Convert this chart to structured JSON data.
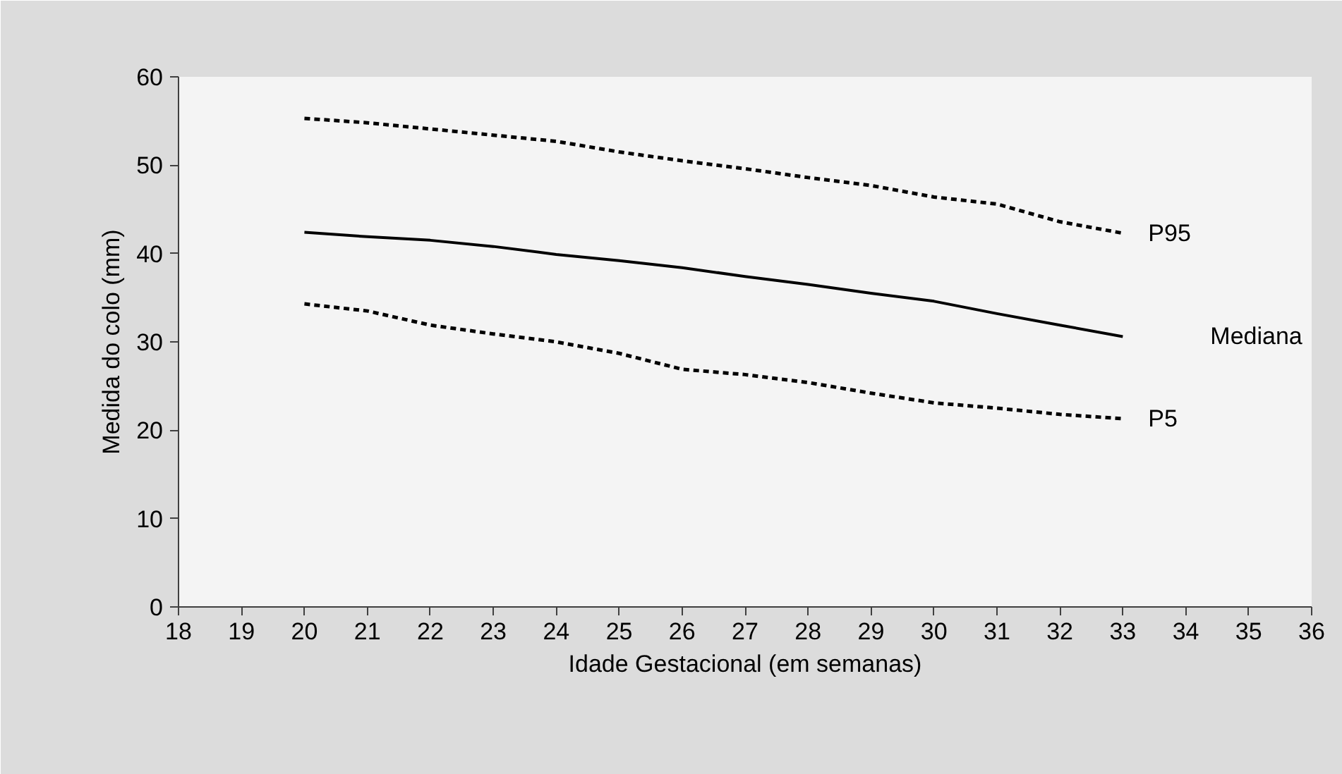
{
  "chart_data": {
    "type": "line",
    "xlabel": "Idade Gestacional (em semanas)",
    "ylabel": "Medida do colo (mm)",
    "x": [
      20,
      21,
      22,
      23,
      24,
      25,
      26,
      27,
      28,
      29,
      30,
      31,
      32,
      33
    ],
    "series": [
      {
        "name": "P95",
        "color": "#000000",
        "line_style": "dotted",
        "values": [
          55.3,
          54.8,
          54.1,
          53.4,
          52.7,
          51.5,
          50.5,
          49.6,
          48.6,
          47.7,
          46.4,
          45.6,
          43.6,
          42.3
        ]
      },
      {
        "name": "Mediana",
        "color": "#000000",
        "line_style": "solid",
        "values": [
          42.4,
          41.9,
          41.5,
          40.8,
          39.9,
          39.2,
          38.4,
          37.4,
          36.5,
          35.5,
          34.6,
          33.2,
          31.9,
          30.6
        ]
      },
      {
        "name": "P5",
        "color": "#000000",
        "line_style": "dotted",
        "values": [
          34.3,
          33.5,
          31.9,
          30.9,
          30.0,
          28.7,
          26.9,
          26.3,
          25.4,
          24.2,
          23.1,
          22.5,
          21.8,
          21.3
        ]
      }
    ],
    "xlim": [
      18,
      36
    ],
    "xticks": [
      18,
      19,
      20,
      21,
      22,
      23,
      24,
      25,
      26,
      27,
      28,
      29,
      30,
      31,
      32,
      33,
      34,
      35,
      36
    ],
    "ylim": [
      0,
      60
    ],
    "yticks": [
      0,
      10,
      20,
      30,
      40,
      50,
      60
    ],
    "grid": false,
    "marker": "none"
  }
}
